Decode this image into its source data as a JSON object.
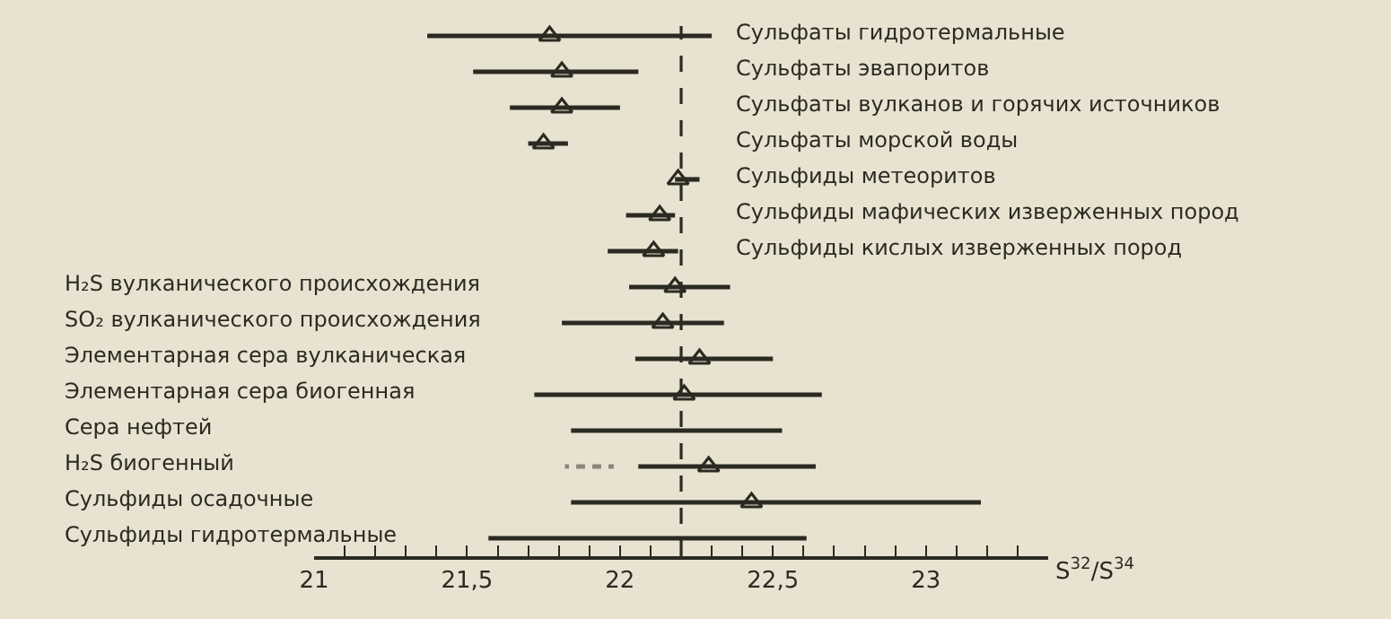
{
  "chart_data": {
    "type": "bar",
    "orientation": "horizontal",
    "categories": [
      null,
      null,
      null,
      null,
      null,
      null,
      null,
      "H₂S вулканического происхождения",
      "SO₂ вулканического происхождения",
      "Элементарная сера вулканическая",
      "Элементарная сера биогенная",
      "Сера нефтей",
      "H₂S биогенный",
      "Сульфиды осадочные",
      "Сульфиды гидротермальные"
    ],
    "y2_categories": [
      "Сульфаты гидротермальные",
      "Сульфаты эвапоритов",
      "Сульфаты вулканов и горячих источников",
      "Сульфаты морской воды",
      "Сульфиды метеоритов",
      "Сульфиды мафических изверженных пород",
      "Сульфиды кислых изверженных пород",
      null,
      null,
      null,
      null,
      null,
      null,
      null,
      null
    ],
    "xlabel": "S$^{32}$/S$^{34}$",
    "xlim": [
      21,
      23.4
    ],
    "xticks": [
      21,
      {
        "value": 21.1,
        "label": null
      },
      {
        "value": 21.2,
        "label": null
      },
      {
        "value": 21.3,
        "label": null
      },
      {
        "value": 21.4,
        "label": null
      },
      {
        "value": 21.5,
        "label": "21,5"
      },
      {
        "value": 21.6,
        "label": null
      },
      {
        "value": 21.7,
        "label": null
      },
      {
        "value": 21.8,
        "label": null
      },
      {
        "value": 21.9,
        "label": null
      },
      22,
      {
        "value": 22.1,
        "label": null
      },
      {
        "value": 22.2,
        "label": null
      },
      {
        "value": 22.3,
        "label": null
      },
      {
        "value": 22.4,
        "label": null
      },
      {
        "value": 22.5,
        "label": "22,5"
      },
      {
        "value": 22.6,
        "label": null
      },
      {
        "value": 22.7,
        "label": null
      },
      {
        "value": 22.8,
        "label": null
      },
      {
        "value": 22.9,
        "label": null
      },
      23,
      {
        "value": 23.1,
        "label": null
      },
      {
        "value": 23.2,
        "label": null
      },
      {
        "value": 23.3,
        "label": null
      }
    ],
    "grid": false,
    "tick_labels": "x",
    "ref_lines": [
      {
        "axis": "x",
        "value": 22.2,
        "color": "#2b2a22",
        "line_style": "dashed"
      }
    ],
    "series": [
      {
        "color": "#2b2a22",
        "base": [
          21.37,
          21.52,
          21.64,
          21.7,
          22.18,
          22.02,
          21.96,
          22.03,
          21.81,
          22.05,
          21.72,
          21.84,
          22.06,
          21.84,
          21.57
        ],
        "values": [
          0.93,
          0.54,
          0.36,
          0.13,
          0.08,
          0.16,
          0.23,
          0.33,
          0.53,
          0.45,
          0.94,
          0.69,
          0.58,
          1.34,
          1.04
        ]
      },
      {
        "color": "#2b2a22",
        "line_style": "dashed",
        "base": [
          null,
          null,
          null,
          null,
          null,
          null,
          null,
          null,
          null,
          null,
          null,
          null,
          21.82,
          null,
          null
        ],
        "values": [
          null,
          null,
          null,
          null,
          null,
          null,
          null,
          null,
          null,
          null,
          null,
          null,
          0.16,
          null,
          null
        ]
      },
      {
        "type": "scatter",
        "color": "#2b2a22",
        "marker": "triangle",
        "values": [
          21.77,
          21.81,
          21.81,
          21.75,
          22.19,
          22.13,
          22.11,
          22.18,
          22.14,
          22.26,
          22.21,
          null,
          22.29,
          22.43,
          null
        ]
      }
    ]
  }
}
